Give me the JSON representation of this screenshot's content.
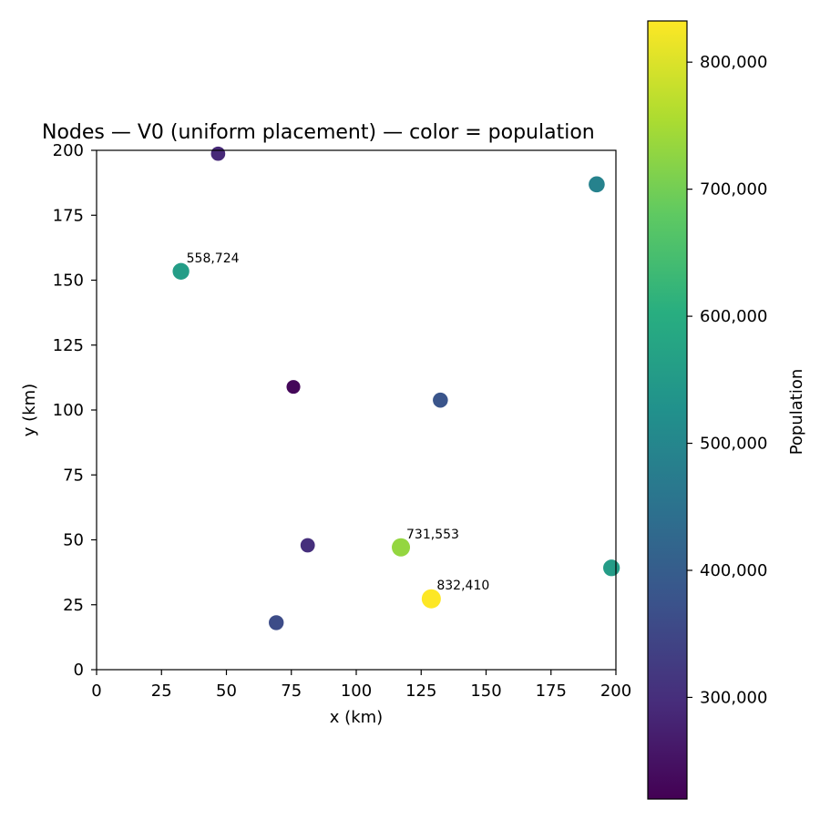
{
  "chart_data": {
    "type": "scatter",
    "title": "Nodes — V0 (uniform placement) — color = population",
    "xlabel": "x (km)",
    "ylabel": "y (km)",
    "xlim": [
      0,
      200
    ],
    "ylim": [
      0,
      200
    ],
    "xticks": [
      "0",
      "25",
      "50",
      "75",
      "100",
      "125",
      "150",
      "175",
      "200"
    ],
    "yticks": [
      "0",
      "25",
      "50",
      "75",
      "100",
      "125",
      "150",
      "175",
      "200"
    ],
    "grid": false,
    "colorbar": {
      "label": "Population",
      "colormap": "viridis",
      "range": [
        220000,
        832410
      ],
      "ticks": [
        "300,000",
        "400,000",
        "500,000",
        "600,000",
        "700,000",
        "800,000"
      ]
    },
    "points": [
      {
        "x": 46.8,
        "y": 198.7,
        "population": 290000
      },
      {
        "x": 192.6,
        "y": 186.9,
        "population": 490000
      },
      {
        "x": 32.5,
        "y": 153.4,
        "population": 558724,
        "label": "558,724"
      },
      {
        "x": 75.8,
        "y": 108.9,
        "population": 230000
      },
      {
        "x": 132.4,
        "y": 103.8,
        "population": 380000
      },
      {
        "x": 81.3,
        "y": 47.9,
        "population": 300000
      },
      {
        "x": 117.2,
        "y": 47.1,
        "population": 731553,
        "label": "731,553"
      },
      {
        "x": 198.3,
        "y": 39.2,
        "population": 555000
      },
      {
        "x": 128.9,
        "y": 27.3,
        "population": 832410,
        "label": "832,410"
      },
      {
        "x": 69.2,
        "y": 18.1,
        "population": 360000
      }
    ]
  }
}
